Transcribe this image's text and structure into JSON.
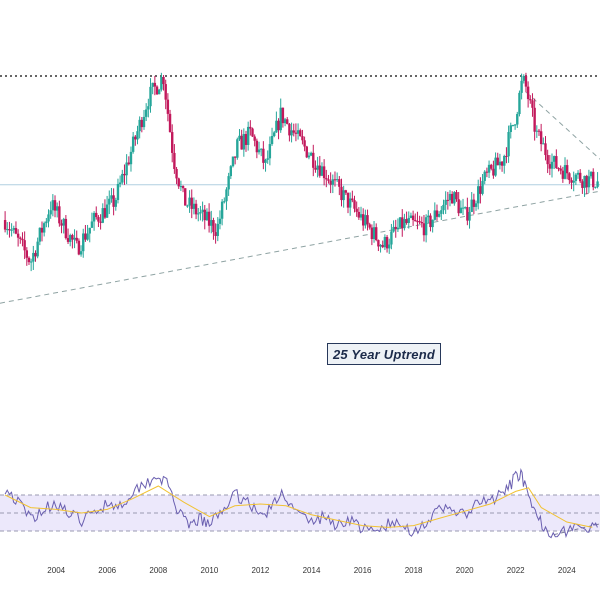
{
  "colors": {
    "up": "#26a69a",
    "down": "#c2185b",
    "rsi_line": "#6a5fb0",
    "rsi_ma": "#f1c232",
    "rsi_band": "#ece8fb",
    "trend_line": "#8fa3a3",
    "resistance": "#666666",
    "midline": "#b0cfe0"
  },
  "annotation": {
    "label": "25 Year Uptrend"
  },
  "chart_data": [
    {
      "type": "candlestick",
      "title": "",
      "x_range": [
        2001.8,
        2025.3
      ],
      "y_range": [
        0,
        100
      ],
      "y_unit": "relative price (axis not shown)",
      "grid": false,
      "series": [
        {
          "name": "",
          "ohlc_yearly_shape": [
            {
              "x": 2002.0,
              "value": 55
            },
            {
              "x": 2003.0,
              "value": 42
            },
            {
              "x": 2003.8,
              "value": 60
            },
            {
              "x": 2004.8,
              "value": 46
            },
            {
              "x": 2005.5,
              "value": 55
            },
            {
              "x": 2006.3,
              "value": 61
            },
            {
              "x": 2007.0,
              "value": 78
            },
            {
              "x": 2007.6,
              "value": 93
            },
            {
              "x": 2008.2,
              "value": 100
            },
            {
              "x": 2008.6,
              "value": 74
            },
            {
              "x": 2009.0,
              "value": 61
            },
            {
              "x": 2010.3,
              "value": 52
            },
            {
              "x": 2011.1,
              "value": 78
            },
            {
              "x": 2011.6,
              "value": 82
            },
            {
              "x": 2012.2,
              "value": 72
            },
            {
              "x": 2012.8,
              "value": 88
            },
            {
              "x": 2013.5,
              "value": 80
            },
            {
              "x": 2014.5,
              "value": 70
            },
            {
              "x": 2015.5,
              "value": 60
            },
            {
              "x": 2016.8,
              "value": 47
            },
            {
              "x": 2017.6,
              "value": 54
            },
            {
              "x": 2018.5,
              "value": 53
            },
            {
              "x": 2019.5,
              "value": 63
            },
            {
              "x": 2020.0,
              "value": 56
            },
            {
              "x": 2020.8,
              "value": 68
            },
            {
              "x": 2021.5,
              "value": 74
            },
            {
              "x": 2022.0,
              "value": 88
            },
            {
              "x": 2022.3,
              "value": 100
            },
            {
              "x": 2022.8,
              "value": 82
            },
            {
              "x": 2023.4,
              "value": 73
            },
            {
              "x": 2024.0,
              "value": 70
            },
            {
              "x": 2024.6,
              "value": 68
            },
            {
              "x": 2025.2,
              "value": 67
            }
          ]
        }
      ],
      "lines": [
        {
          "name": "",
          "style": "dotted",
          "y": 100
        },
        {
          "name": "",
          "style": "dashed",
          "from": {
            "x": 2001.8,
            "y": 29
          },
          "to": {
            "x": 2025.3,
            "y": 64
          }
        },
        {
          "name": "",
          "style": "dashed",
          "from": {
            "x": 2022.4,
            "y": 95
          },
          "to": {
            "x": 2025.3,
            "y": 74
          }
        },
        {
          "name": "",
          "style": "solid",
          "y": 66
        }
      ]
    },
    {
      "type": "line",
      "title": "",
      "x_range": [
        2001.8,
        2025.3
      ],
      "y_range": [
        0,
        100
      ],
      "band": [
        30,
        70
      ],
      "x_ticks": [
        "2004",
        "2006",
        "2008",
        "2010",
        "2012",
        "2014",
        "2016",
        "2018",
        "2020",
        "2022",
        "2024"
      ],
      "series": [
        {
          "name": "",
          "points": [
            [
              2002.0,
              78
            ],
            [
              2002.5,
              62
            ],
            [
              2003.0,
              44
            ],
            [
              2003.5,
              54
            ],
            [
              2004.0,
              62
            ],
            [
              2004.5,
              48
            ],
            [
              2005.0,
              42
            ],
            [
              2005.5,
              50
            ],
            [
              2006.0,
              62
            ],
            [
              2006.5,
              58
            ],
            [
              2007.0,
              74
            ],
            [
              2007.5,
              84
            ],
            [
              2008.0,
              92
            ],
            [
              2008.4,
              80
            ],
            [
              2008.8,
              50
            ],
            [
              2009.2,
              34
            ],
            [
              2009.6,
              44
            ],
            [
              2010.0,
              36
            ],
            [
              2010.5,
              54
            ],
            [
              2011.0,
              70
            ],
            [
              2011.5,
              64
            ],
            [
              2012.0,
              46
            ],
            [
              2012.5,
              58
            ],
            [
              2012.9,
              74
            ],
            [
              2013.3,
              52
            ],
            [
              2014.0,
              40
            ],
            [
              2014.5,
              46
            ],
            [
              2015.0,
              36
            ],
            [
              2015.5,
              44
            ],
            [
              2016.0,
              32
            ],
            [
              2016.5,
              28
            ],
            [
              2017.0,
              38
            ],
            [
              2017.5,
              36
            ],
            [
              2018.0,
              30
            ],
            [
              2018.5,
              40
            ],
            [
              2019.0,
              52
            ],
            [
              2019.5,
              56
            ],
            [
              2020.0,
              46
            ],
            [
              2020.5,
              60
            ],
            [
              2021.0,
              64
            ],
            [
              2021.5,
              70
            ],
            [
              2021.9,
              86
            ],
            [
              2022.2,
              96
            ],
            [
              2022.5,
              64
            ],
            [
              2022.9,
              42
            ],
            [
              2023.3,
              30
            ],
            [
              2023.8,
              28
            ],
            [
              2024.3,
              36
            ],
            [
              2024.8,
              30
            ],
            [
              2025.2,
              34
            ]
          ]
        },
        {
          "name": "",
          "style": "moving-average",
          "points": [
            [
              2002.0,
              70
            ],
            [
              2003.0,
              56
            ],
            [
              2004.0,
              54
            ],
            [
              2005.0,
              50
            ],
            [
              2006.0,
              54
            ],
            [
              2007.0,
              66
            ],
            [
              2008.0,
              80
            ],
            [
              2009.0,
              62
            ],
            [
              2010.0,
              46
            ],
            [
              2011.0,
              58
            ],
            [
              2012.0,
              60
            ],
            [
              2013.0,
              58
            ],
            [
              2014.0,
              48
            ],
            [
              2015.0,
              42
            ],
            [
              2016.0,
              36
            ],
            [
              2017.0,
              34
            ],
            [
              2018.0,
              36
            ],
            [
              2019.0,
              44
            ],
            [
              2020.0,
              52
            ],
            [
              2021.0,
              60
            ],
            [
              2022.0,
              74
            ],
            [
              2022.5,
              78
            ],
            [
              2023.0,
              56
            ],
            [
              2024.0,
              40
            ],
            [
              2025.0,
              34
            ]
          ]
        }
      ],
      "lines": [
        {
          "name": "",
          "style": "dashed",
          "y": 70
        },
        {
          "name": "",
          "style": "dashed",
          "y": 50
        },
        {
          "name": "",
          "style": "dashed",
          "y": 30
        },
        {
          "name": "",
          "style": "dashed",
          "from": {
            "x": 2023.5,
            "y": 26
          },
          "to": {
            "x": 2025.3,
            "y": 38
          }
        }
      ]
    }
  ]
}
